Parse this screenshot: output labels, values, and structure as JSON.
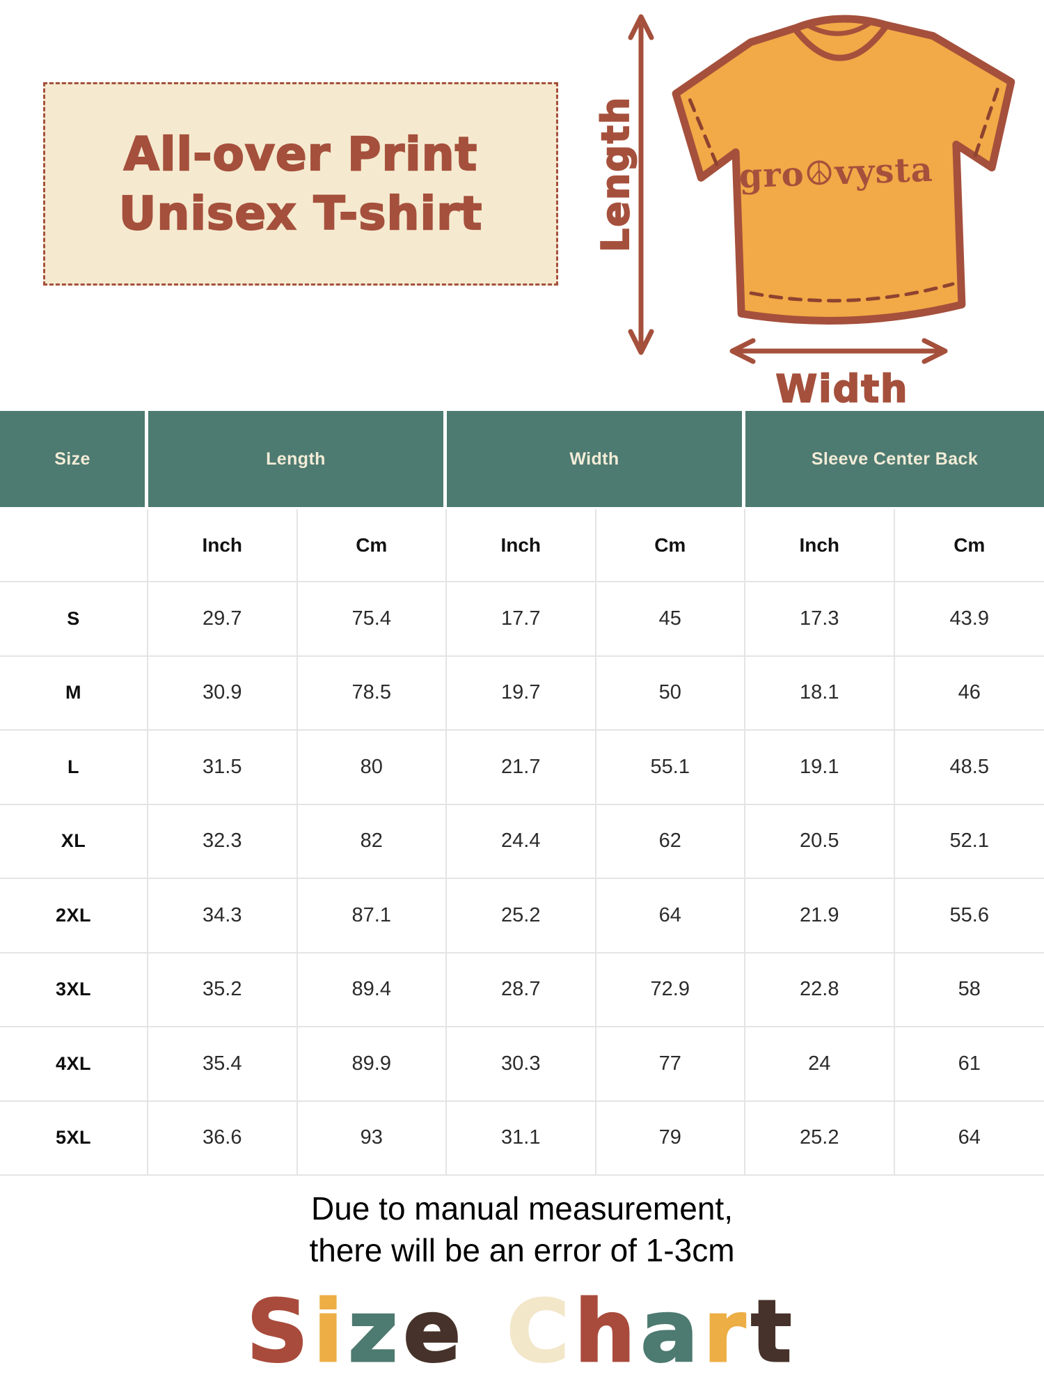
{
  "title": {
    "line1": "All-over Print",
    "line2": "Unisex T-shirt"
  },
  "diagram": {
    "length_label": "Length",
    "width_label": "Width",
    "shirt_logo": "gro☮vysta"
  },
  "table": {
    "group_labels": [
      "Size",
      "Length",
      "Width",
      "Sleeve Center Back"
    ],
    "unit_headers": [
      "Inch",
      "Cm",
      "Inch",
      "Cm",
      "Inch",
      "Cm"
    ],
    "rows": [
      {
        "size": "S",
        "values": [
          "29.7",
          "75.4",
          "17.7",
          "45",
          "17.3",
          "43.9"
        ]
      },
      {
        "size": "M",
        "values": [
          "30.9",
          "78.5",
          "19.7",
          "50",
          "18.1",
          "46"
        ]
      },
      {
        "size": "L",
        "values": [
          "31.5",
          "80",
          "21.7",
          "55.1",
          "19.1",
          "48.5"
        ]
      },
      {
        "size": "XL",
        "values": [
          "32.3",
          "82",
          "24.4",
          "62",
          "20.5",
          "52.1"
        ]
      },
      {
        "size": "2XL",
        "values": [
          "34.3",
          "87.1",
          "25.2",
          "64",
          "21.9",
          "55.6"
        ]
      },
      {
        "size": "3XL",
        "values": [
          "35.2",
          "89.4",
          "28.7",
          "72.9",
          "22.8",
          "58"
        ]
      },
      {
        "size": "4XL",
        "values": [
          "35.4",
          "89.9",
          "30.3",
          "77",
          "24",
          "61"
        ]
      },
      {
        "size": "5XL",
        "values": [
          "36.6",
          "93",
          "31.1",
          "79",
          "25.2",
          "64"
        ]
      }
    ]
  },
  "note": {
    "line1": "Due to manual measurement,",
    "line2": "there will be an error of 1-3cm"
  },
  "size_chart_title": {
    "letters": [
      {
        "ch": "S",
        "color": "#a94b3c"
      },
      {
        "ch": "i",
        "color": "#edae45"
      },
      {
        "ch": "z",
        "color": "#4d7a71"
      },
      {
        "ch": "e",
        "color": "#46322a"
      },
      {
        "ch": " ",
        "color": ""
      },
      {
        "ch": "C",
        "color": "#f2e7c9"
      },
      {
        "ch": "h",
        "color": "#a94b3c"
      },
      {
        "ch": "a",
        "color": "#4d7a71"
      },
      {
        "ch": "r",
        "color": "#edae45"
      },
      {
        "ch": "t",
        "color": "#46322a"
      }
    ]
  },
  "colors": {
    "brick": "#a5503c",
    "shirt_orange": "#f2a947",
    "teal_header": "#4d7a71",
    "cream_box": "#f5ead0",
    "header_text": "#f2ecd7",
    "dark_brown": "#46322a",
    "accent_yellow": "#edae45",
    "table_border": "#e4e4e4"
  },
  "chart_data": {
    "type": "table",
    "title": "Size Chart",
    "columns": [
      "Size",
      "Length (Inch)",
      "Length (Cm)",
      "Width (Inch)",
      "Width (Cm)",
      "Sleeve Center Back (Inch)",
      "Sleeve Center Back (Cm)"
    ],
    "rows": [
      [
        "S",
        29.7,
        75.4,
        17.7,
        45,
        17.3,
        43.9
      ],
      [
        "M",
        30.9,
        78.5,
        19.7,
        50,
        18.1,
        46
      ],
      [
        "L",
        31.5,
        80,
        21.7,
        55.1,
        19.1,
        48.5
      ],
      [
        "XL",
        32.3,
        82,
        24.4,
        62,
        20.5,
        52.1
      ],
      [
        "2XL",
        34.3,
        87.1,
        25.2,
        64,
        21.9,
        55.6
      ],
      [
        "3XL",
        35.2,
        89.4,
        28.7,
        72.9,
        22.8,
        58
      ],
      [
        "4XL",
        35.4,
        89.9,
        30.3,
        77,
        24,
        61
      ],
      [
        "5XL",
        36.6,
        93,
        31.1,
        79,
        25.2,
        64
      ]
    ]
  }
}
